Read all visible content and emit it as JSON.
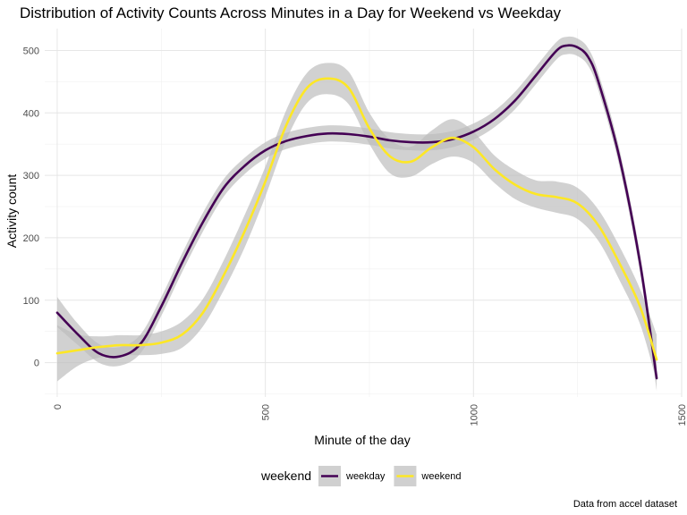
{
  "chart_data": {
    "type": "line",
    "title": "Distribution of Activity Counts Across Minutes in a Day for Weekend vs Weekday",
    "xlabel": "Minute of the day",
    "ylabel": "Activity count",
    "caption": "Data from accel dataset",
    "xlim": [
      -30,
      1500
    ],
    "ylim": [
      -55,
      535
    ],
    "x_ticks": [
      0,
      500,
      1000,
      1500
    ],
    "y_ticks": [
      0,
      100,
      200,
      300,
      400,
      500
    ],
    "grid": true,
    "legend": {
      "title": "weekend",
      "placement": "bottom"
    },
    "band_color": "#bdbdbd",
    "series": [
      {
        "name": "weekday",
        "color": "#440154",
        "x": [
          0,
          50,
          100,
          150,
          200,
          250,
          300,
          350,
          400,
          450,
          500,
          550,
          600,
          650,
          700,
          750,
          800,
          850,
          900,
          950,
          1000,
          1050,
          1100,
          1150,
          1200,
          1225,
          1250,
          1275,
          1300,
          1350,
          1400,
          1440
        ],
        "y": [
          80,
          45,
          15,
          10,
          30,
          90,
          160,
          225,
          280,
          315,
          340,
          355,
          363,
          367,
          366,
          362,
          356,
          353,
          353,
          358,
          370,
          390,
          420,
          460,
          500,
          508,
          505,
          490,
          450,
          330,
          160,
          -25
        ],
        "lower": [
          57,
          28,
          0,
          -5,
          15,
          75,
          145,
          210,
          266,
          302,
          327,
          342,
          350,
          354,
          353,
          349,
          343,
          340,
          340,
          345,
          357,
          377,
          406,
          446,
          486,
          494,
          491,
          476,
          436,
          316,
          145,
          -45
        ],
        "upper": [
          105,
          62,
          30,
          25,
          45,
          105,
          175,
          240,
          294,
          328,
          353,
          368,
          376,
          380,
          379,
          375,
          369,
          366,
          366,
          371,
          383,
          403,
          434,
          474,
          514,
          522,
          519,
          504,
          464,
          344,
          175,
          -5
        ]
      },
      {
        "name": "weekend",
        "color": "#fde725",
        "x": [
          0,
          50,
          100,
          150,
          200,
          250,
          300,
          350,
          400,
          450,
          500,
          550,
          600,
          650,
          700,
          750,
          800,
          850,
          900,
          950,
          1000,
          1050,
          1100,
          1150,
          1200,
          1250,
          1300,
          1350,
          1400,
          1440
        ],
        "y": [
          15,
          20,
          25,
          28,
          28,
          32,
          45,
          80,
          140,
          210,
          290,
          380,
          440,
          455,
          440,
          375,
          330,
          322,
          345,
          360,
          345,
          310,
          285,
          270,
          265,
          255,
          220,
          160,
          90,
          5
        ],
        "lower": [
          -30,
          -5,
          8,
          12,
          12,
          14,
          24,
          58,
          116,
          184,
          266,
          356,
          416,
          430,
          414,
          350,
          303,
          298,
          318,
          330,
          320,
          288,
          262,
          248,
          240,
          230,
          195,
          133,
          62,
          -30
        ],
        "upper": [
          60,
          45,
          42,
          44,
          44,
          50,
          66,
          102,
          164,
          236,
          314,
          404,
          464,
          480,
          466,
          400,
          357,
          346,
          372,
          390,
          370,
          332,
          308,
          292,
          290,
          280,
          245,
          187,
          118,
          45
        ]
      }
    ]
  }
}
